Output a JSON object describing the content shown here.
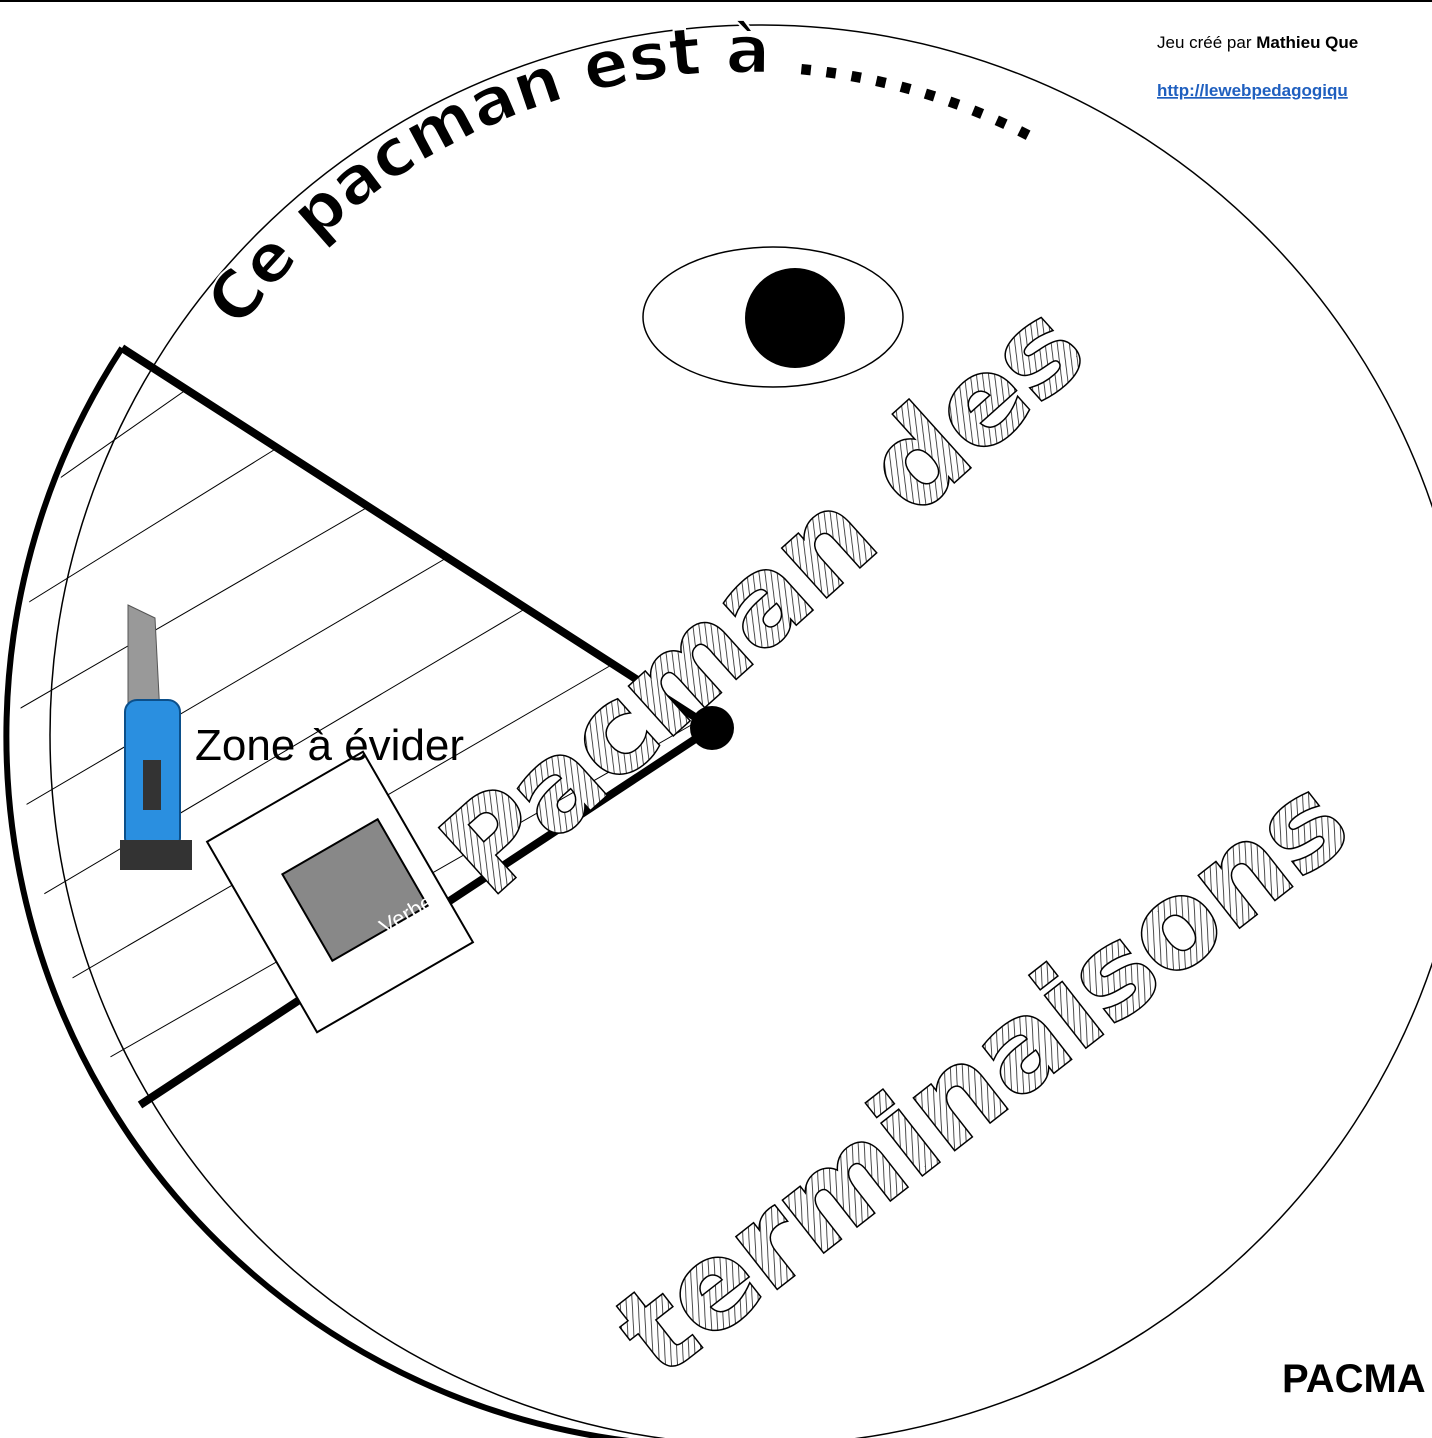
{
  "header": {
    "credit_prefix": "Jeu créé par",
    "credit_name": "Mathieu Que",
    "link": "http://lewebpedagogiqu"
  },
  "disc": {
    "title": "Ce pacman est à ..........",
    "cut_zone": "Zone à évider",
    "game_title_1": "Pacman des",
    "game_title_2": "terminaisons",
    "mascot_label": "Verbe"
  },
  "footer": "PACMA"
}
